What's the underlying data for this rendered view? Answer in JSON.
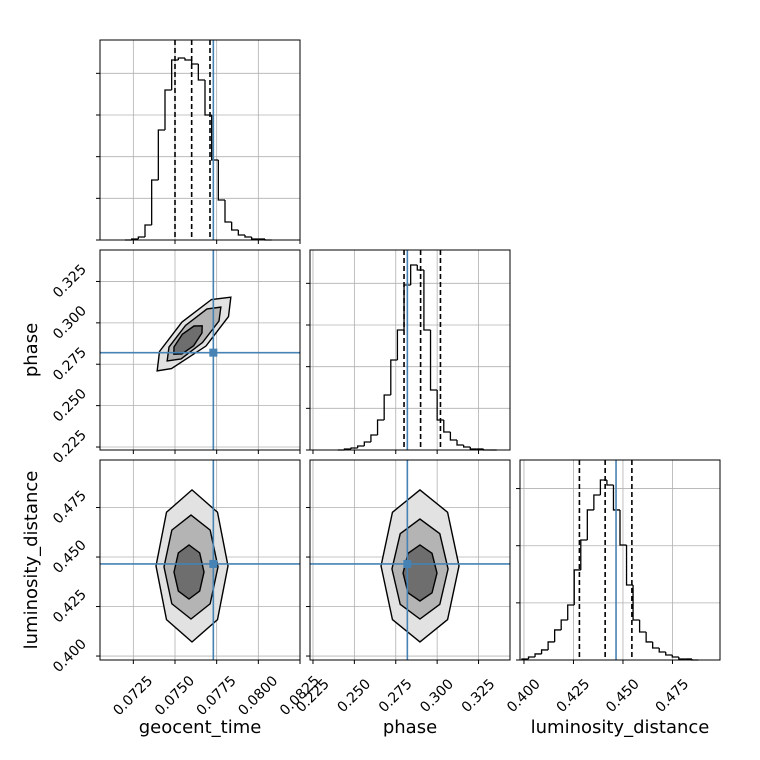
{
  "chart_data": {
    "type": "corner",
    "grid": true,
    "truth_color": "#4682b4",
    "hist_color": "#000000",
    "contour_fills": [
      "#e2e2e2",
      "#b4b4b4",
      "#6e6e6e"
    ],
    "parameters": [
      {
        "name": "geocent_time",
        "lim": [
          0.0705,
          0.0825
        ],
        "ticks": [
          0.0725,
          {
            "value": 0.075,
            "label": "0.0750"
          },
          0.0775,
          {
            "value": 0.08,
            "label": "0.0800"
          },
          0.0825
        ],
        "truth": 0.0773,
        "quantiles": [
          0.075,
          0.076,
          0.0771
        ],
        "hist": {
          "bins": [
            0.072,
            0.0724,
            0.0728,
            0.0732,
            0.0736,
            0.074,
            0.0744,
            0.0748,
            0.0752,
            0.0756,
            0.076,
            0.0764,
            0.0768,
            0.0772,
            0.0776,
            0.078,
            0.0784,
            0.0788,
            0.0792,
            0.0796,
            0.08,
            0.0804,
            0.0808
          ],
          "counts": [
            0,
            12,
            36,
            180,
            720,
            1320,
            1800,
            2160,
            2184,
            2160,
            2112,
            1920,
            1500,
            960,
            480,
            216,
            120,
            60,
            36,
            12,
            12,
            0
          ],
          "ylim": [
            0,
            2400
          ],
          "yticks": [
            0,
            500,
            1000,
            1500,
            2000
          ]
        }
      },
      {
        "name": "phase",
        "lim": [
          0.2232,
          0.344
        ],
        "ticks": [
          0.225,
          {
            "value": 0.25,
            "label": "0.250"
          },
          0.275,
          {
            "value": 0.3,
            "label": "0.300"
          },
          0.325
        ],
        "truth": 0.282,
        "quantiles": [
          0.28,
          0.29,
          0.302
        ],
        "hist": {
          "bins": [
            0.24,
            0.244,
            0.248,
            0.252,
            0.256,
            0.26,
            0.264,
            0.268,
            0.272,
            0.276,
            0.28,
            0.284,
            0.288,
            0.292,
            0.296,
            0.3,
            0.304,
            0.308,
            0.312,
            0.316,
            0.32,
            0.324,
            0.328,
            0.332,
            0.336
          ],
          "counts": [
            0,
            12,
            24,
            48,
            96,
            180,
            360,
            660,
            1080,
            1440,
            1980,
            2220,
            2160,
            1440,
            720,
            360,
            216,
            120,
            60,
            36,
            12,
            12,
            0,
            0
          ],
          "ylim": [
            0,
            2400
          ],
          "yticks": [
            0,
            500,
            1000,
            1500,
            2000
          ]
        }
      },
      {
        "name": "luminosity_distance",
        "lim": [
          0.398,
          0.499
        ],
        "ticks": [
          {
            "value": 0.4,
            "label": "0.400"
          },
          0.425,
          {
            "value": 0.45,
            "label": "0.450"
          },
          0.475
        ],
        "truth": 0.4465,
        "quantiles": [
          0.428,
          0.441,
          0.4545
        ],
        "hist": {
          "bins": [
            0.399,
            0.4023,
            0.4056,
            0.4089,
            0.4122,
            0.4155,
            0.4188,
            0.4221,
            0.4254,
            0.4287,
            0.432,
            0.4353,
            0.4386,
            0.4419,
            0.4452,
            0.4485,
            0.4518,
            0.4551,
            0.4584,
            0.4617,
            0.465,
            0.4683,
            0.4716,
            0.4749,
            0.4782,
            0.4815,
            0.4848,
            0.4881
          ],
          "counts": [
            9,
            26,
            53,
            88,
            158,
            263,
            350,
            481,
            788,
            1050,
            1313,
            1444,
            1575,
            1531,
            1313,
            1006,
            656,
            350,
            245,
            158,
            105,
            70,
            44,
            26,
            9,
            9,
            0
          ],
          "ylim": [
            0,
            1750
          ],
          "yticks": [
            0,
            500,
            1000,
            1500
          ]
        }
      }
    ],
    "pairs": [
      {
        "contours": [
          {
            "x": [
              0.07835,
              0.07821,
              0.07686,
              0.07479,
              0.07393,
              0.07407,
              0.07542,
              0.07719
            ],
            "y": [
              0.3155,
              0.3038,
              0.286,
              0.2724,
              0.271,
              0.2827,
              0.3005,
              0.3141
            ]
          },
          {
            "x": [
              0.07775,
              0.07764,
              0.07665,
              0.07536,
              0.07453,
              0.07464,
              0.07563,
              0.07692
            ],
            "y": [
              0.3095,
              0.3011,
              0.2881,
              0.2782,
              0.277,
              0.2854,
              0.2984,
              0.3084
            ]
          },
          {
            "x": [
              0.07663,
              0.07662,
              0.07612,
              0.07542,
              0.07493,
              0.07494,
              0.07544,
              0.07614
            ],
            "y": [
              0.2982,
              0.2939,
              0.2862,
              0.2812,
              0.2811,
              0.2854,
              0.2931,
              0.2981
            ]
          }
        ]
      },
      {
        "contours": [
          {
            "x": [
              0.07818,
              0.07755,
              0.07602,
              0.07449,
              0.07386,
              0.07449,
              0.07602,
              0.07755
            ],
            "y": [
              0.4455,
              0.4726,
              0.4839,
              0.4726,
              0.4455,
              0.4184,
              0.4071,
              0.4184
            ]
          },
          {
            "x": [
              0.07758,
              0.07711,
              0.07596,
              0.07481,
              0.07434,
              0.07481,
              0.07596,
              0.07711
            ],
            "y": [
              0.445,
              0.4636,
              0.4712,
              0.4636,
              0.445,
              0.4264,
              0.4187,
              0.4264
            ]
          },
          {
            "x": [
              0.07674,
              0.07648,
              0.07584,
              0.0752,
              0.07494,
              0.0752,
              0.07584,
              0.07648
            ],
            "y": [
              0.4424,
              0.4521,
              0.4561,
              0.4521,
              0.4424,
              0.4328,
              0.4288,
              0.4328
            ]
          }
        ]
      },
      {
        "contours": [
          {
            "x": [
              0.3132,
              0.3063,
              0.2896,
              0.273,
              0.2661,
              0.273,
              0.2896,
              0.3063
            ],
            "y": [
              0.4455,
              0.4726,
              0.4839,
              0.4726,
              0.4455,
              0.4184,
              0.4071,
              0.4184
            ]
          },
          {
            "x": [
              0.3066,
              0.3016,
              0.2896,
              0.2777,
              0.2727,
              0.2777,
              0.2896,
              0.3016
            ],
            "y": [
              0.444,
              0.4618,
              0.4692,
              0.4618,
              0.444,
              0.4261,
              0.4187,
              0.4261
            ]
          },
          {
            "x": [
              0.2999,
              0.2969,
              0.2896,
              0.2824,
              0.2794,
              0.2824,
              0.2896,
              0.2969
            ],
            "y": [
              0.4419,
              0.4519,
              0.4561,
              0.4519,
              0.4419,
              0.4319,
              0.4278,
              0.4319
            ]
          }
        ]
      }
    ]
  }
}
